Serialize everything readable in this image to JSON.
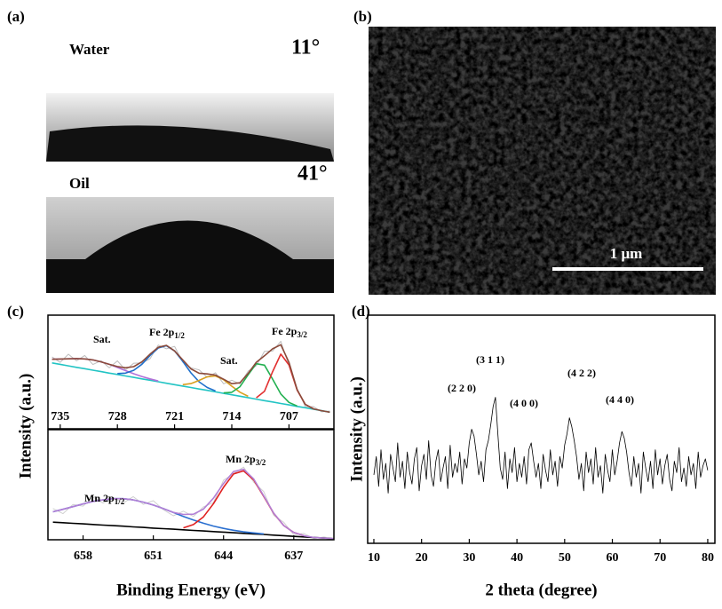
{
  "panels": {
    "a": {
      "label": "(a)",
      "water": "Water",
      "water_angle": "11°",
      "oil": "Oil",
      "oil_angle": "41°"
    },
    "b": {
      "label": "(b)",
      "scale_bar": "1 μm"
    },
    "c": {
      "label": "(c)",
      "ylabel": "Intensity (a.u.)",
      "xlabel": "Binding Energy (eV)"
    },
    "d": {
      "label": "(d)"
    }
  },
  "chart_data": [
    {
      "type": "line",
      "xlim": [
        736.5,
        701.5
      ],
      "ylim": [
        0,
        100
      ],
      "xticks": [
        735,
        728,
        721,
        714,
        707
      ],
      "x": [
        736,
        735,
        734,
        733,
        732,
        731,
        730,
        729,
        728,
        727,
        726,
        725,
        724,
        723,
        722,
        721,
        720,
        719,
        718,
        717,
        716,
        715,
        714,
        713,
        712,
        711,
        710,
        709,
        708,
        707,
        706,
        705,
        704,
        703,
        702
      ],
      "series": [
        {
          "color": "#bdbdbd",
          "values": [
            63.2,
            58.4,
            65.6,
            59.8,
            64.5,
            56.6,
            59.9,
            53.7,
            59.8,
            51.7,
            57.7,
            57.9,
            61.7,
            73.7,
            70.4,
            72.5,
            58.6,
            53.7,
            51.9,
            45.3,
            49.3,
            39.6,
            42.7,
            39.5,
            50.7,
            55.5,
            68.2,
            68.4,
            77.0,
            55.4,
            35.4,
            19.4,
            19.5,
            14.9,
            15.6
          ]
        },
        {
          "color": "#22c4c4",
          "values": [
            58.0,
            56.7,
            55.4,
            54.1,
            52.9,
            51.6,
            50.3,
            49.0,
            47.8,
            46.5,
            45.2,
            43.9,
            42.7,
            41.4,
            40.1,
            38.8,
            37.6,
            36.3,
            35.0,
            33.8,
            32.5,
            31.2,
            29.9,
            28.7,
            27.4,
            26.1,
            24.8,
            23.6,
            22.3,
            21.0,
            19.7,
            18.5,
            17.2,
            15.9,
            14.6
          ]
        },
        {
          "color": "#b070d8",
          "values": [
            61.2,
            61.4,
            61.6,
            61.8,
            61.5,
            60.6,
            58.9,
            56.7,
            54.0,
            51.2,
            48.4,
            46.0,
            43.9,
            42.0,
            null,
            null,
            null,
            null,
            null,
            null,
            null,
            null,
            null,
            null,
            null,
            null,
            null,
            null,
            null,
            null,
            null,
            null,
            null,
            null,
            null
          ]
        },
        {
          "color": "#2070cc",
          "values": [
            null,
            null,
            null,
            null,
            null,
            null,
            null,
            null,
            48.6,
            49.0,
            51.5,
            56.8,
            64.5,
            71.1,
            73.1,
            68.5,
            59.4,
            49.2,
            41.3,
            36.3,
            33.3,
            null,
            null,
            null,
            null,
            null,
            null,
            null,
            null,
            null,
            null,
            null,
            null,
            null,
            null
          ]
        },
        {
          "color": "#d8a020",
          "values": [
            null,
            null,
            null,
            null,
            null,
            null,
            null,
            null,
            null,
            null,
            null,
            null,
            null,
            null,
            null,
            null,
            38.8,
            39.8,
            42.6,
            45.8,
            46.5,
            43.2,
            37.5,
            32.2,
            28.6,
            null,
            null,
            null,
            null,
            null,
            null,
            null,
            null,
            null,
            null
          ]
        },
        {
          "color": "#22b050",
          "values": [
            null,
            null,
            null,
            null,
            null,
            null,
            null,
            null,
            null,
            null,
            null,
            null,
            null,
            null,
            null,
            null,
            null,
            null,
            null,
            null,
            null,
            31.6,
            32.1,
            37.0,
            47.5,
            57.3,
            56.0,
            43.7,
            30.6,
            23.2,
            20.1,
            null,
            null,
            null,
            null
          ]
        },
        {
          "color": "#e23030",
          "values": [
            null,
            null,
            null,
            null,
            null,
            null,
            null,
            null,
            null,
            null,
            null,
            null,
            null,
            null,
            null,
            null,
            null,
            null,
            null,
            null,
            null,
            null,
            null,
            null,
            null,
            27.3,
            33.0,
            50.3,
            65.7,
            56.2,
            34.0,
            21.4,
            17.5,
            null,
            null
          ]
        },
        {
          "color": "#8b4a3a",
          "values": [
            61.2,
            61.4,
            61.6,
            61.8,
            61.5,
            60.6,
            58.9,
            56.7,
            54.8,
            53.7,
            54.7,
            58.9,
            65.7,
            71.7,
            73.4,
            68.5,
            60.6,
            52.7,
            48.9,
            48.3,
            47.3,
            43.6,
            39.7,
            40.5,
            48.7,
            58.5,
            64.2,
            70.4,
            74.0,
            58.4,
            34.4,
            21.4,
            17.5,
            15.9,
            14.6
          ]
        }
      ],
      "annotations": [
        {
          "text": "Sat."
        },
        {
          "text": "Fe 2p",
          "sub": "1/2"
        },
        {
          "text": "Sat."
        },
        {
          "text": "Fe 2p",
          "sub": "3/2"
        }
      ]
    },
    {
      "type": "line",
      "xlim": [
        661.5,
        633
      ],
      "ylim": [
        0,
        100
      ],
      "xticks": [
        658,
        651,
        644,
        637
      ],
      "x": [
        661,
        660,
        659,
        658,
        657,
        656,
        655,
        654,
        653,
        652,
        651,
        650,
        649,
        648,
        647,
        646,
        645,
        644,
        643,
        642,
        641,
        640,
        639,
        638,
        637,
        636,
        635,
        634,
        633
      ],
      "series": [
        {
          "color": "#d0d0d0",
          "values": [
            28.4,
            23.7,
            32.1,
            30.6,
            38.8,
            33.3,
            38.3,
            33.3,
            39.2,
            32.2,
            35.5,
            27.3,
            21.8,
            26.0,
            21.2,
            29.8,
            33.8,
            54.1,
            60.0,
            66.0,
            52.3,
            43.9,
            22.2,
            15.9,
            4.6,
            5.7,
            1.1,
            2.5,
            1.0
          ]
        },
        {
          "color": "#000000",
          "values": [
            16.0,
            15.5,
            14.9,
            14.4,
            13.9,
            13.3,
            12.8,
            12.3,
            11.7,
            11.2,
            10.6,
            10.1,
            9.6,
            9.0,
            8.5,
            8.0,
            7.4,
            6.9,
            6.4,
            5.8,
            5.3,
            4.8,
            4.2,
            3.7,
            3.1,
            2.6,
            2.1,
            1.5,
            1.0
          ]
        },
        {
          "color": "#2a6fd0",
          "values": [
            25.4,
            27.7,
            30.1,
            32.6,
            34.8,
            36.3,
            37.3,
            37.3,
            36.2,
            34.2,
            31.5,
            28.3,
            24.8,
            21.2,
            17.9,
            15.0,
            12.4,
            10.3,
            8.6,
            7.2,
            6.2,
            5.3,
            null,
            null,
            null,
            null,
            null,
            null,
            null
          ]
        },
        {
          "color": "#e02020",
          "values": [
            null,
            null,
            null,
            null,
            null,
            null,
            null,
            null,
            null,
            null,
            null,
            null,
            null,
            10.8,
            13.8,
            20.8,
            32.8,
            47.7,
            59.8,
            62.6,
            54.4,
            39.4,
            24.0,
            12.9,
            6.6,
            3.7,
            null,
            null,
            null
          ]
        },
        {
          "color": "#b37fd6",
          "values": [
            25.4,
            27.7,
            30.1,
            32.6,
            34.8,
            36.3,
            37.3,
            37.3,
            36.2,
            34.2,
            31.5,
            28.3,
            24.8,
            23.0,
            23.2,
            27.8,
            37.8,
            51.1,
            62.0,
            64.0,
            55.3,
            39.9,
            24.2,
            12.9,
            6.6,
            3.7,
            2.1,
            1.5,
            1.0
          ]
        }
      ],
      "annotations": [
        {
          "text": "Mn 2p",
          "sub": "1/2"
        },
        {
          "text": "Mn 2p",
          "sub": "3/2"
        }
      ]
    },
    {
      "type": "line",
      "xlabel": "2 theta (degree)",
      "ylabel": "Intensity (a.u.)",
      "xlim": [
        8.7,
        81.5
      ],
      "ylim": [
        0,
        100
      ],
      "xticks": [
        10,
        20,
        30,
        40,
        50,
        60,
        70,
        80
      ],
      "x": [
        10,
        10.5,
        11,
        11.5,
        12,
        12.5,
        13,
        13.5,
        14,
        14.5,
        15,
        15.5,
        16,
        16.5,
        17,
        17.5,
        18,
        18.5,
        19,
        19.5,
        20,
        20.5,
        21,
        21.5,
        22,
        22.5,
        23,
        23.5,
        24,
        24.5,
        25,
        25.5,
        26,
        26.5,
        27,
        27.5,
        28,
        28.5,
        29,
        29.5,
        30,
        30.5,
        31,
        31.5,
        32,
        32.5,
        33,
        33.5,
        34,
        34.5,
        35,
        35.5,
        36,
        36.5,
        37,
        37.5,
        38,
        38.5,
        39,
        39.5,
        40,
        40.5,
        41,
        41.5,
        42,
        42.5,
        43,
        43.5,
        44,
        44.5,
        45,
        45.5,
        46,
        46.5,
        47,
        47.5,
        48,
        48.5,
        49,
        49.5,
        50,
        50.5,
        51,
        51.5,
        52,
        52.5,
        53,
        53.5,
        54,
        54.5,
        55,
        55.5,
        56,
        56.5,
        57,
        57.5,
        58,
        58.5,
        59,
        59.5,
        60,
        60.5,
        61,
        61.5,
        62,
        62.5,
        63,
        63.5,
        64,
        64.5,
        65,
        65.5,
        66,
        66.5,
        67,
        67.5,
        68,
        68.5,
        69,
        69.5,
        70,
        70.5,
        71,
        71.5,
        72,
        72.5,
        73,
        73.5,
        74,
        74.5,
        75,
        75.5,
        76,
        76.5,
        77,
        77.5,
        78,
        78.5,
        79,
        79.5,
        80
      ],
      "series": [
        {
          "color": "#000000",
          "values": [
            30,
            38,
            25,
            41,
            28,
            35,
            22,
            39,
            33,
            27,
            44,
            29,
            36,
            24,
            40,
            31,
            26,
            37,
            42,
            23,
            34,
            39,
            28,
            45,
            30,
            25,
            36,
            41,
            27,
            33,
            38,
            24,
            43,
            29,
            35,
            31,
            40,
            26,
            37,
            33,
            44,
            50,
            47,
            39,
            30,
            36,
            27,
            41,
            45,
            52,
            60,
            64,
            48,
            33,
            28,
            40,
            24,
            37,
            31,
            42,
            27,
            35,
            29,
            38,
            26,
            41,
            44,
            36,
            29,
            35,
            24,
            39,
            32,
            27,
            41,
            30,
            36,
            25,
            38,
            33,
            43,
            48,
            55,
            51,
            45,
            38,
            28,
            35,
            23,
            40,
            31,
            37,
            26,
            42,
            29,
            34,
            22,
            39,
            32,
            27,
            41,
            30,
            36,
            44,
            49,
            46,
            40,
            31,
            25,
            38,
            29,
            35,
            22,
            40,
            33,
            27,
            36,
            24,
            41,
            30,
            37,
            26,
            34,
            39,
            28,
            23,
            36,
            31,
            42,
            27,
            33,
            25,
            38,
            30,
            35,
            24,
            40,
            29,
            34,
            37,
            32
          ]
        }
      ],
      "annotations": [
        "(2 2 0)",
        "(3 1 1)",
        "(4 0 0)",
        "(4 2 2)",
        "(4 4 0)"
      ]
    }
  ]
}
